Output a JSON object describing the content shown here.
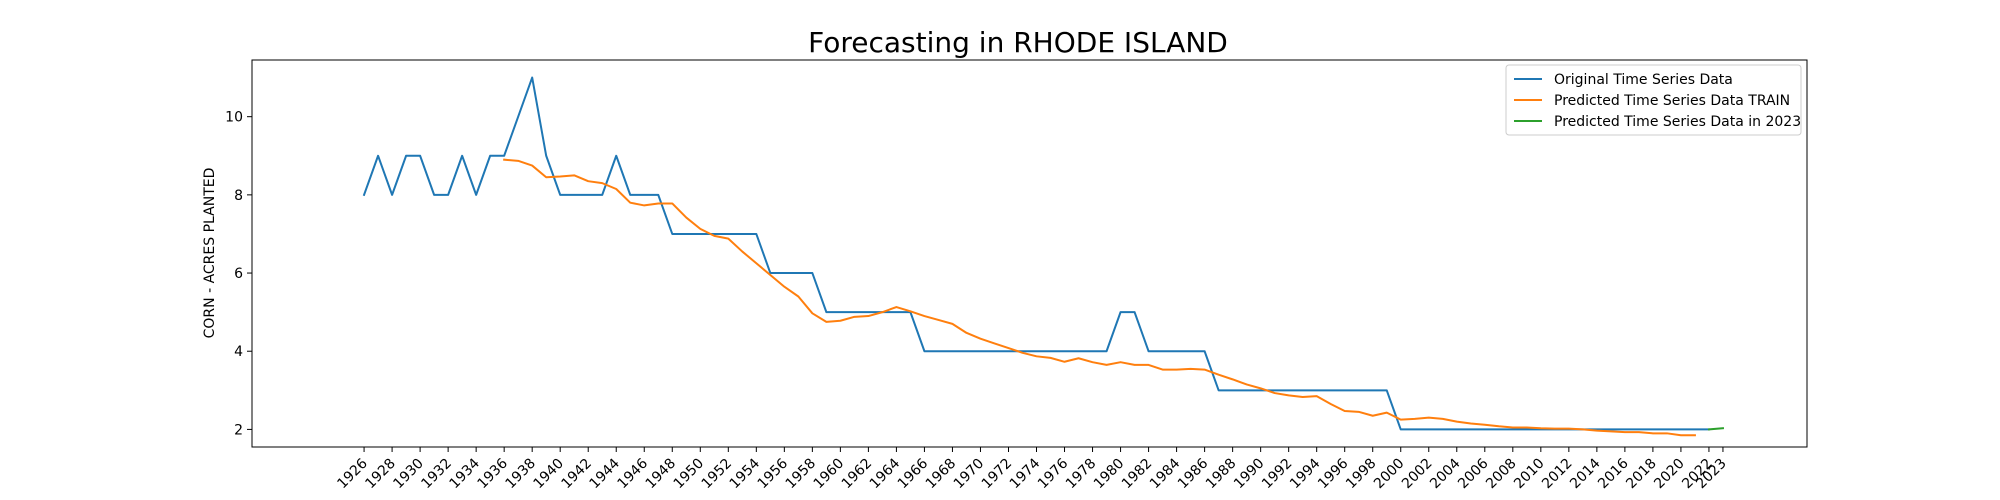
{
  "chart_data": {
    "type": "line",
    "title": "Forecasting in RHODE ISLAND",
    "xlabel": "",
    "ylabel": "CORN - ACRES PLANTED",
    "xlim": [
      1918,
      2029
    ],
    "ylim": [
      1.55,
      11.45
    ],
    "xticks": [
      1926,
      1928,
      1930,
      1932,
      1934,
      1936,
      1938,
      1940,
      1942,
      1944,
      1946,
      1948,
      1950,
      1952,
      1954,
      1956,
      1958,
      1960,
      1962,
      1964,
      1966,
      1968,
      1970,
      1972,
      1974,
      1976,
      1978,
      1980,
      1982,
      1984,
      1986,
      1988,
      1990,
      1992,
      1994,
      1996,
      1998,
      2000,
      2002,
      2004,
      2006,
      2008,
      2010,
      2012,
      2014,
      2016,
      2018,
      2020,
      2022,
      2023
    ],
    "yticks": [
      2,
      4,
      6,
      8,
      10
    ],
    "grid": false,
    "legend_position": "top-right",
    "series": [
      {
        "name": "Original Time Series Data",
        "color": "#1f77b4",
        "x": [
          1926,
          1927,
          1928,
          1929,
          1930,
          1931,
          1932,
          1933,
          1934,
          1935,
          1936,
          1937,
          1938,
          1939,
          1940,
          1941,
          1942,
          1943,
          1944,
          1945,
          1946,
          1947,
          1948,
          1949,
          1950,
          1951,
          1952,
          1953,
          1954,
          1955,
          1956,
          1957,
          1958,
          1959,
          1960,
          1961,
          1962,
          1963,
          1964,
          1965,
          1966,
          1967,
          1968,
          1969,
          1970,
          1971,
          1972,
          1973,
          1974,
          1975,
          1976,
          1977,
          1978,
          1979,
          1980,
          1981,
          1982,
          1983,
          1984,
          1985,
          1986,
          1987,
          1988,
          1989,
          1990,
          1991,
          1992,
          1993,
          1994,
          1995,
          1996,
          1997,
          1998,
          1999,
          2000,
          2001,
          2002,
          2003,
          2004,
          2005,
          2006,
          2007,
          2008,
          2009,
          2010,
          2011,
          2012,
          2013,
          2014,
          2015,
          2016,
          2017,
          2018,
          2019,
          2020,
          2021,
          2022
        ],
        "y": [
          8,
          9,
          8,
          9,
          9,
          8,
          8,
          9,
          8,
          9,
          9,
          10,
          11,
          9,
          8,
          8,
          8,
          8,
          9,
          8,
          8,
          8,
          7,
          7,
          7,
          7,
          7,
          7,
          7,
          6,
          6,
          6,
          6,
          5,
          5,
          5,
          5,
          5,
          5,
          5,
          4,
          4,
          4,
          4,
          4,
          4,
          4,
          4,
          4,
          4,
          4,
          4,
          4,
          4,
          5,
          5,
          4,
          4,
          4,
          4,
          4,
          3,
          3,
          3,
          3,
          3,
          3,
          3,
          3,
          3,
          3,
          3,
          3,
          3,
          2,
          2,
          2,
          2,
          2,
          2,
          2,
          2,
          2,
          2,
          2,
          2,
          2,
          2,
          2,
          2,
          2,
          2,
          2,
          2,
          2,
          2,
          2
        ]
      },
      {
        "name": "Predicted Time Series Data TRAIN",
        "color": "#ff7f0e",
        "x": [
          1936,
          1937,
          1938,
          1939,
          1940,
          1941,
          1942,
          1943,
          1944,
          1945,
          1946,
          1947,
          1948,
          1949,
          1950,
          1951,
          1952,
          1953,
          1954,
          1955,
          1956,
          1957,
          1958,
          1959,
          1960,
          1961,
          1962,
          1963,
          1964,
          1965,
          1966,
          1967,
          1968,
          1969,
          1970,
          1971,
          1972,
          1973,
          1974,
          1975,
          1976,
          1977,
          1978,
          1979,
          1980,
          1981,
          1982,
          1983,
          1984,
          1985,
          1986,
          1987,
          1988,
          1989,
          1990,
          1991,
          1992,
          1993,
          1994,
          1995,
          1996,
          1997,
          1998,
          1999,
          2000,
          2001,
          2002,
          2003,
          2004,
          2005,
          2006,
          2007,
          2008,
          2009,
          2010,
          2011,
          2012,
          2013,
          2014,
          2015,
          2016,
          2017,
          2018,
          2019,
          2020,
          2021
        ],
        "y": [
          8.9,
          8.87,
          8.75,
          8.45,
          8.47,
          8.5,
          8.35,
          8.3,
          8.15,
          7.8,
          7.73,
          7.78,
          7.78,
          7.42,
          7.13,
          6.95,
          6.88,
          6.55,
          6.25,
          5.95,
          5.65,
          5.4,
          4.97,
          4.75,
          4.78,
          4.88,
          4.9,
          5.0,
          5.13,
          5.02,
          4.9,
          4.8,
          4.7,
          4.47,
          4.32,
          4.2,
          4.08,
          3.96,
          3.87,
          3.83,
          3.73,
          3.82,
          3.72,
          3.65,
          3.72,
          3.65,
          3.65,
          3.53,
          3.53,
          3.55,
          3.53,
          3.4,
          3.28,
          3.15,
          3.05,
          2.93,
          2.87,
          2.83,
          2.85,
          2.65,
          2.47,
          2.45,
          2.35,
          2.43,
          2.25,
          2.27,
          2.3,
          2.27,
          2.2,
          2.15,
          2.12,
          2.08,
          2.05,
          2.05,
          2.03,
          2.02,
          2.02,
          2.0,
          1.97,
          1.95,
          1.93,
          1.93,
          1.9,
          1.9,
          1.85,
          1.85
        ]
      },
      {
        "name": "Predicted Time Series Data in 2023",
        "color": "#2ca02c",
        "x": [
          2022,
          2023
        ],
        "y": [
          2.0,
          2.03
        ]
      }
    ]
  }
}
